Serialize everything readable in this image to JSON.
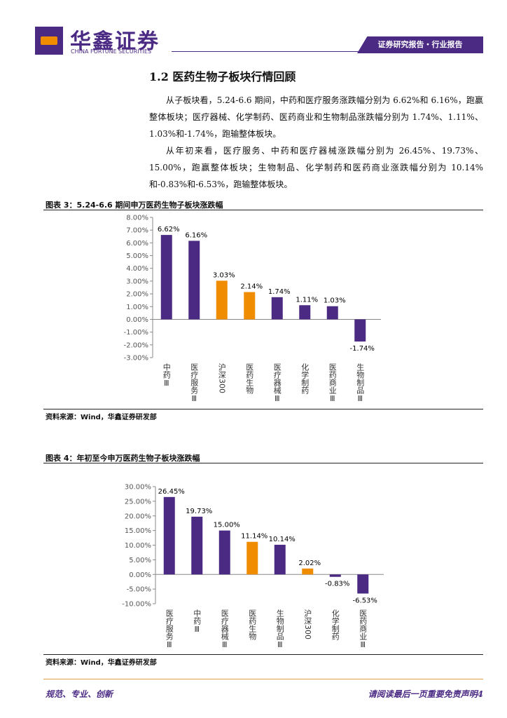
{
  "header": {
    "brand": "华鑫证券",
    "brand_en": "CHINA FORTUNE SECURITIES",
    "tag": "证券研究报告・行业报告"
  },
  "heading": "1.2 医药生物子板块行情回顾",
  "paragraphs": [
    "从子板块看，5.24-6.6 期间，中药和医疗服务涨跌幅分别为 6.62%和 6.16%，跑赢整体板块；医疗器械、化学制药、医药商业和生物制品涨跌幅分别为 1.74%、1.11%、1.03%和-1.74%，跑输整体板块。",
    "从年初来看，医疗服务、中药和医疗器械涨跌幅分别为 26.45%、19.73%、15.00%，跑赢整体板块；生物制品、化学制药和医药商业涨跌幅分别为 10.14%和-0.83%和-6.53%，跑输整体板块。"
  ],
  "chart_data": [
    {
      "type": "bar",
      "title": "图表 3：5.24-6.6 期间申万医药生物子板块涨跌幅",
      "source": "资料来源：Wind，华鑫证券研发部",
      "categories": [
        "中药Ⅲ",
        "医疗服务Ⅲ",
        "沪深300",
        "医药生物",
        "医疗器械Ⅲ",
        "化学制药",
        "医药商业Ⅲ",
        "生物制品Ⅲ"
      ],
      "values": [
        6.62,
        6.16,
        3.03,
        2.14,
        1.74,
        1.11,
        1.03,
        -1.74
      ],
      "value_labels": [
        "6.62%",
        "6.16%",
        "3.03%",
        "2.14%",
        "1.74%",
        "1.11%",
        "1.03%",
        "-1.74%"
      ],
      "colors": [
        "#4b2a84",
        "#4b2a84",
        "#f08c00",
        "#f08c00",
        "#4b2a84",
        "#4b2a84",
        "#4b2a84",
        "#4b2a84"
      ],
      "ylim": [
        -3,
        8
      ],
      "yticks": [
        {
          "value": -3,
          "label": "-3.00%"
        },
        {
          "value": -2,
          "label": "-2.00%"
        },
        {
          "value": -1,
          "label": "-1.00%"
        },
        {
          "value": 0,
          "label": "0.00%"
        },
        {
          "value": 1,
          "label": "1.00%"
        },
        {
          "value": 2,
          "label": "2.00%"
        },
        {
          "value": 3,
          "label": "3.00%"
        },
        {
          "value": 4,
          "label": "4.00%"
        },
        {
          "value": 5,
          "label": "5.00%"
        },
        {
          "value": 6,
          "label": "6.00%"
        },
        {
          "value": 7,
          "label": "7.00%"
        },
        {
          "value": 8,
          "label": "8.00%"
        }
      ]
    },
    {
      "type": "bar",
      "title": "图表 4：年初至今申万医药生物子板块涨跌幅",
      "source": "资料来源：Wind，华鑫证券研发部",
      "categories": [
        "医疗服务Ⅲ",
        "中药Ⅲ",
        "医疗器械Ⅲ",
        "医药生物",
        "生物制品Ⅲ",
        "沪深300",
        "化学制药",
        "医药商业Ⅲ"
      ],
      "values": [
        26.45,
        19.73,
        15.0,
        11.14,
        10.14,
        2.02,
        -0.83,
        -6.53
      ],
      "value_labels": [
        "26.45%",
        "19.73%",
        "15.00%",
        "11.14%",
        "10.14%",
        "2.02%",
        "-0.83%",
        "-6.53%"
      ],
      "colors": [
        "#4b2a84",
        "#4b2a84",
        "#4b2a84",
        "#f08c00",
        "#4b2a84",
        "#f08c00",
        "#4b2a84",
        "#4b2a84"
      ],
      "ylim": [
        -10,
        30
      ],
      "yticks": [
        {
          "value": -10,
          "label": "-10.00%"
        },
        {
          "value": -5,
          "label": "-5.00%"
        },
        {
          "value": 0,
          "label": "0.00%"
        },
        {
          "value": 5,
          "label": "5.00%"
        },
        {
          "value": 10,
          "label": "10.00%"
        },
        {
          "value": 15,
          "label": "15.00%"
        },
        {
          "value": 20,
          "label": "20.00%"
        },
        {
          "value": 25,
          "label": "25.00%"
        },
        {
          "value": 30,
          "label": "30.00%"
        }
      ]
    }
  ],
  "footer": {
    "motto": "规范、专业、创新",
    "notice": "请阅读最后一页重要免责声明4"
  }
}
